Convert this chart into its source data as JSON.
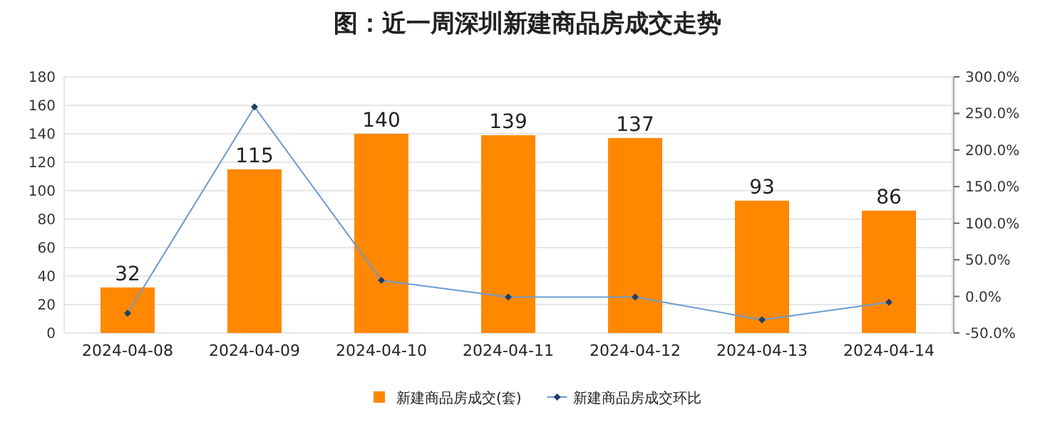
{
  "chart_data": {
    "type": "bar",
    "title": "图：近一周深圳新建商品房成交走势",
    "categories": [
      "2024-04-08",
      "2024-04-09",
      "2024-04-10",
      "2024-04-11",
      "2024-04-12",
      "2024-04-13",
      "2024-04-14"
    ],
    "series": [
      {
        "name": "新建商品房成交(套)",
        "color": "#ff8800",
        "values": [
          32,
          115,
          140,
          139,
          137,
          93,
          86
        ],
        "value_labels": [
          "32",
          "115",
          "140",
          "139",
          "137",
          "93",
          "86"
        ]
      },
      {
        "name": "新建商品房成交环比",
        "type": "line",
        "axis": "y2",
        "color": "#6b9bd2",
        "marker": "diamond",
        "values": [
          -23,
          259,
          22,
          -1,
          -1,
          -32,
          -8
        ]
      }
    ],
    "ylim": [
      0,
      180
    ],
    "yticks": [
      0,
      20,
      40,
      60,
      80,
      100,
      120,
      140,
      160,
      180
    ],
    "y2lim": [
      -50,
      300
    ],
    "y2ticks": [
      {
        "value": -50,
        "label": "-50.0%"
      },
      {
        "value": 0,
        "label": "0.0%"
      },
      {
        "value": 50,
        "label": "50.0%"
      },
      {
        "value": 100,
        "label": "100.0%"
      },
      {
        "value": 150,
        "label": "150.0%"
      },
      {
        "value": 200,
        "label": "200.0%"
      },
      {
        "value": 250,
        "label": "250.0%"
      },
      {
        "value": 300,
        "label": "300.0%"
      }
    ],
    "grid": "y",
    "legend": "bottom"
  }
}
